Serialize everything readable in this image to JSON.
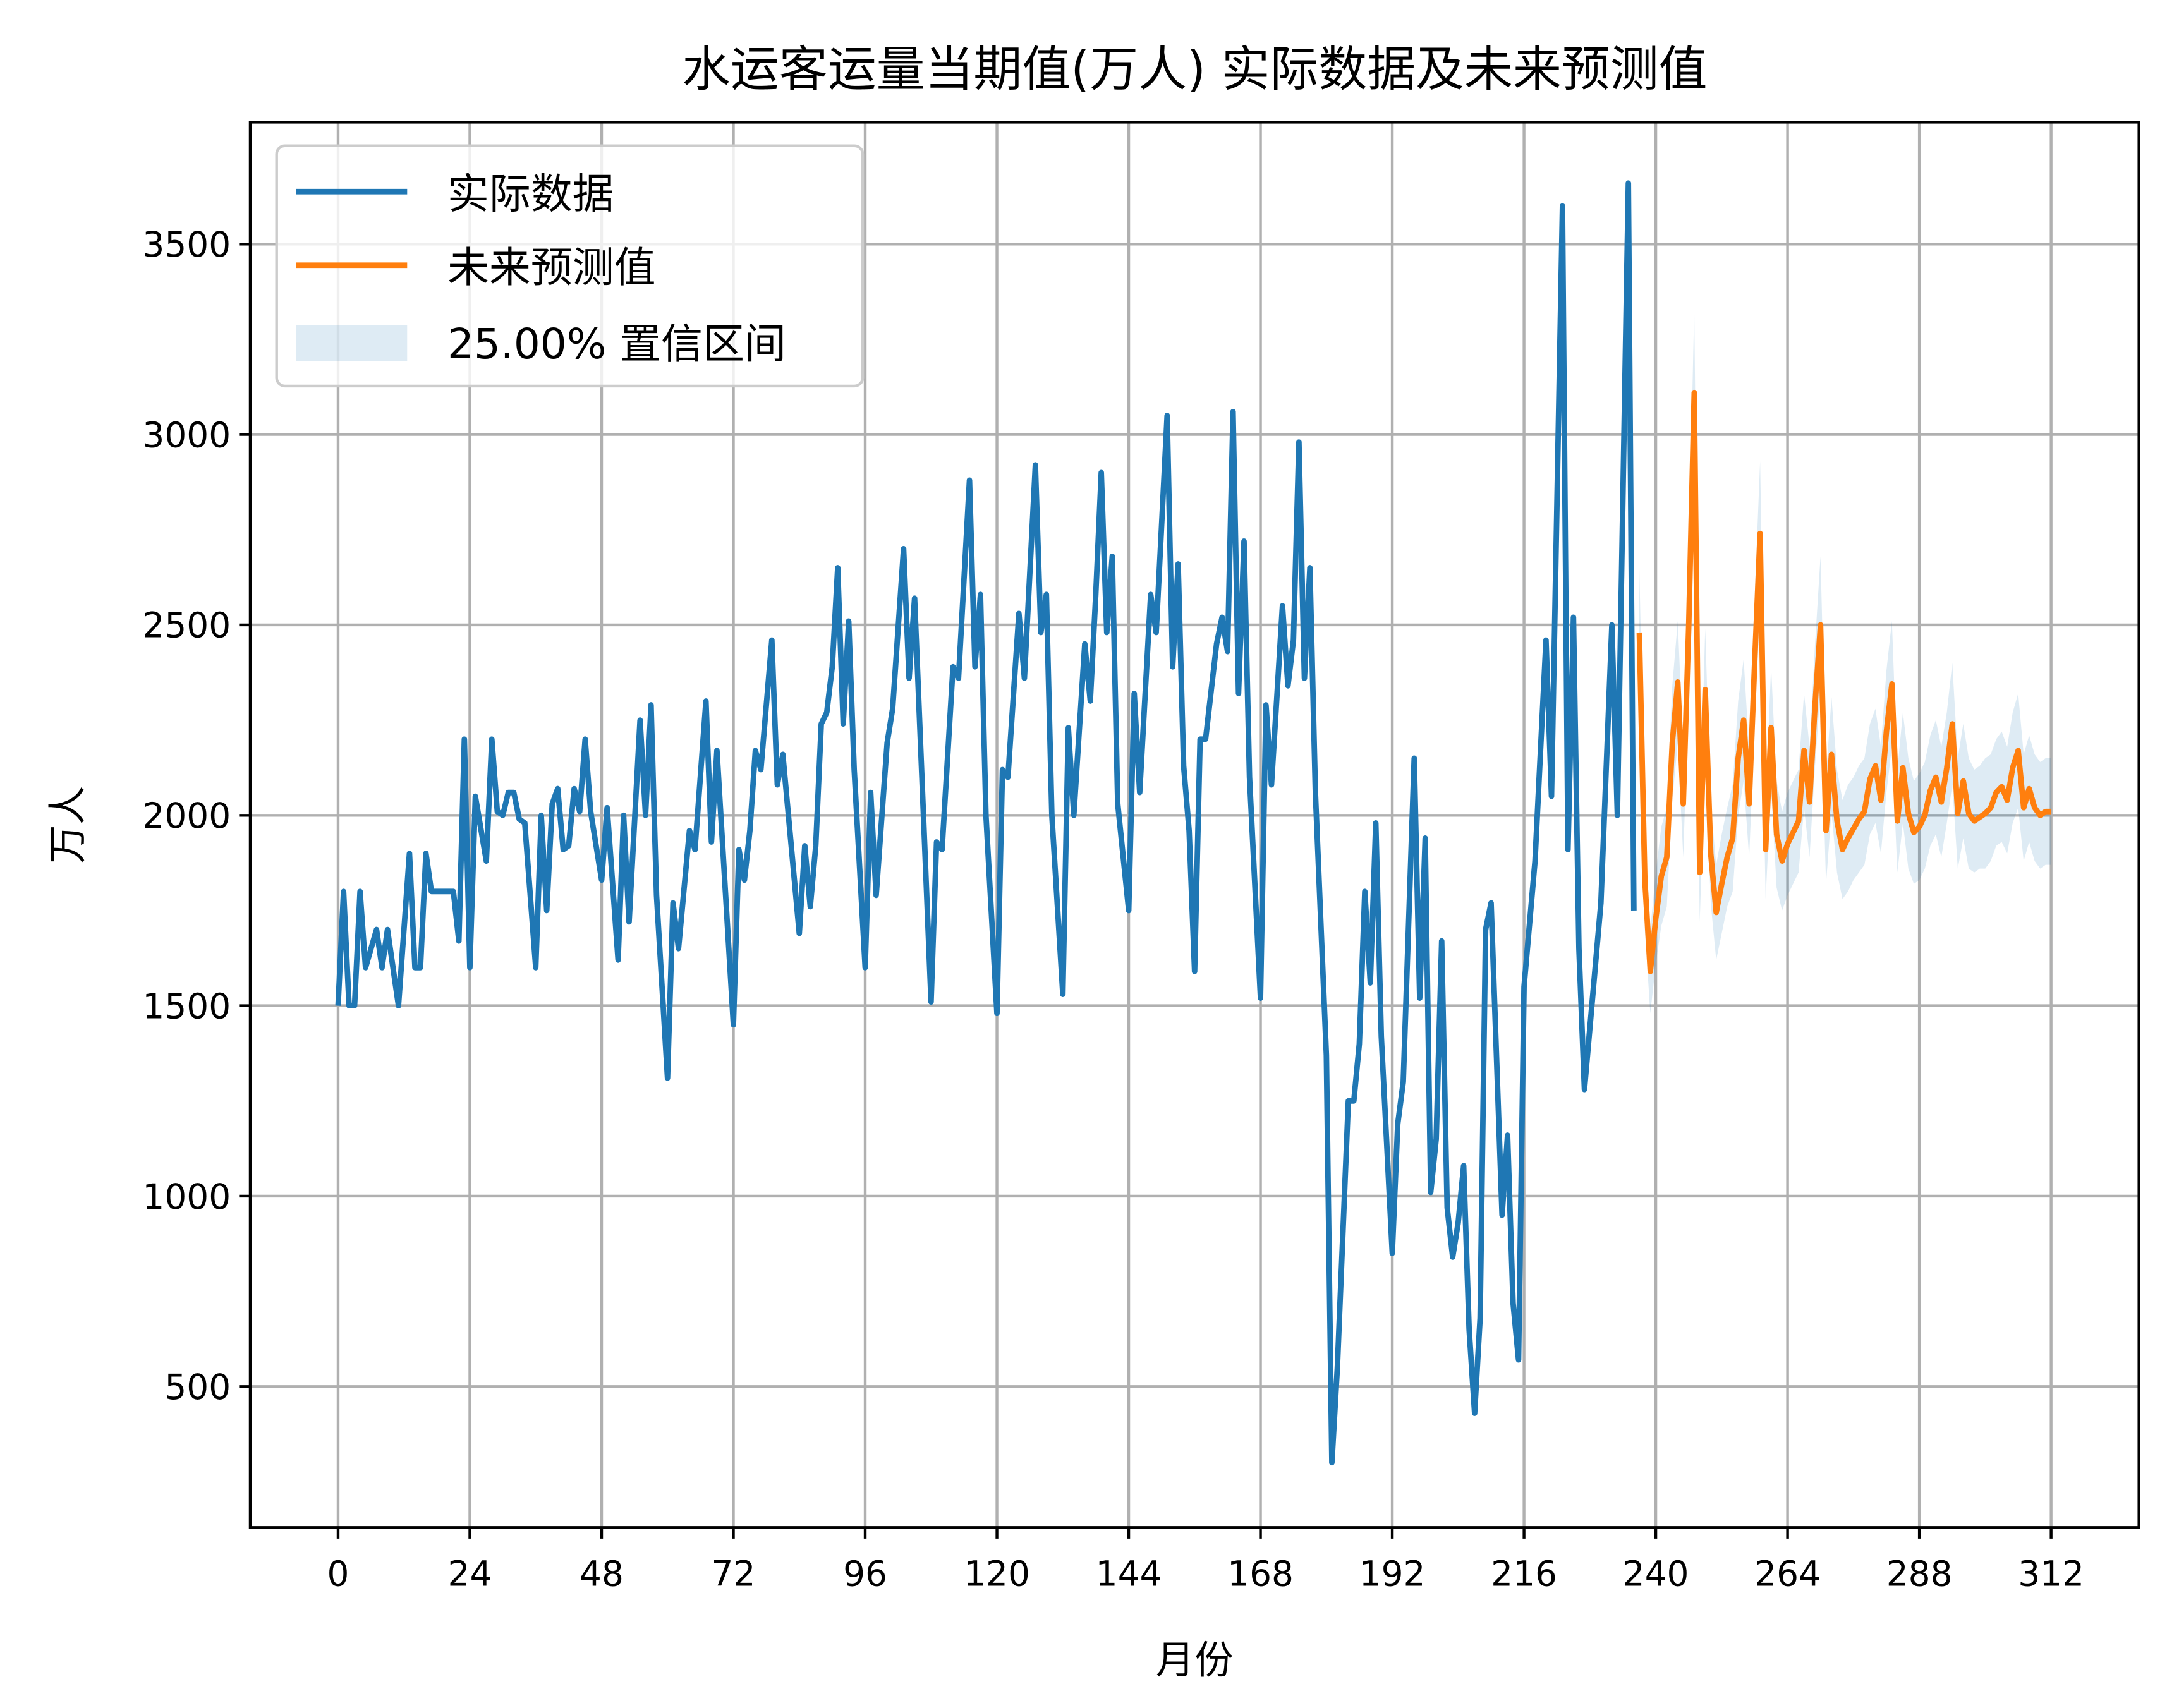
{
  "chart_data": {
    "type": "line",
    "title": "水运客运量当期值(万人) 实际数据及未来预测值",
    "xlabel": "月份",
    "ylabel": "万人",
    "xlim": [
      -16,
      328
    ],
    "ylim": [
      130,
      3820
    ],
    "xticks": [
      0,
      24,
      48,
      72,
      96,
      120,
      144,
      168,
      192,
      216,
      240,
      264,
      288,
      312
    ],
    "yticks": [
      500,
      1000,
      1500,
      2000,
      2500,
      3000,
      3500
    ],
    "grid": true,
    "legend_position": "top-left",
    "colors": {
      "actual": "#1f77b4",
      "forecast": "#ff7f0e",
      "band": "#1f77b4"
    },
    "series": [
      {
        "name": "实际数据",
        "x": [
          0,
          1,
          2,
          3,
          4,
          5,
          7,
          8,
          9,
          11,
          13,
          14,
          15,
          16,
          17,
          21,
          22,
          23,
          24,
          25,
          27,
          28,
          29,
          30,
          31,
          32,
          33,
          34,
          36,
          37,
          38,
          39,
          40,
          41,
          42,
          43,
          44,
          45,
          46,
          48,
          49,
          51,
          52,
          53,
          55,
          56,
          57,
          58,
          60,
          61,
          62,
          64,
          65,
          67,
          68,
          69,
          72,
          73,
          74,
          75,
          76,
          77,
          79,
          80,
          81,
          84,
          85,
          86,
          87,
          88,
          89,
          90,
          91,
          92,
          93,
          94,
          96,
          97,
          98,
          100,
          101,
          103,
          104,
          105,
          108,
          109,
          110,
          112,
          113,
          115,
          116,
          117,
          118,
          120,
          121,
          122,
          124,
          125,
          127,
          128,
          129,
          130,
          132,
          133,
          134,
          136,
          137,
          138,
          139,
          140,
          141,
          142,
          144,
          145,
          146,
          148,
          149,
          151,
          152,
          153,
          154,
          155,
          156,
          157,
          158,
          160,
          161,
          162,
          163,
          164,
          165,
          166,
          168,
          169,
          170,
          172,
          173,
          174,
          175,
          176,
          177,
          178,
          180,
          181,
          182,
          184,
          185,
          186,
          187,
          188,
          189,
          190,
          192,
          193,
          194,
          196,
          197,
          198,
          199,
          200,
          201,
          202,
          203,
          204,
          205,
          206,
          207,
          208,
          209,
          210,
          212,
          213,
          214,
          215,
          216,
          218,
          220,
          221,
          223,
          224,
          225,
          226,
          227,
          230,
          232,
          233,
          235,
          236
        ],
        "y": [
          1500,
          1800,
          1500,
          1500,
          1800,
          1600,
          1700,
          1600,
          1700,
          1500,
          1900,
          1600,
          1600,
          1900,
          1800,
          1800,
          1670,
          2200,
          1600,
          2050,
          1880,
          2200,
          2010,
          2000,
          2060,
          2060,
          1990,
          1980,
          1600,
          2000,
          1750,
          2030,
          2070,
          1910,
          1920,
          2070,
          2010,
          2200,
          2010,
          1830,
          2020,
          1620,
          2000,
          1720,
          2250,
          2000,
          2290,
          1790,
          1310,
          1770,
          1650,
          1960,
          1910,
          2300,
          1930,
          2170,
          1450,
          1910,
          1830,
          1960,
          2170,
          2120,
          2460,
          2080,
          2160,
          1690,
          1920,
          1760,
          1920,
          2240,
          2270,
          2390,
          2650,
          2240,
          2510,
          2120,
          1600,
          2060,
          1790,
          2190,
          2280,
          2700,
          2360,
          2570,
          1510,
          1930,
          1910,
          2390,
          2360,
          2880,
          2390,
          2580,
          2000,
          1480,
          2120,
          2100,
          2530,
          2360,
          2920,
          2480,
          2580,
          2000,
          1530,
          2230,
          2000,
          2450,
          2300,
          2580,
          2900,
          2480,
          2680,
          2030,
          1750,
          2320,
          2060,
          2580,
          2480,
          3050,
          2390,
          2660,
          2130,
          1960,
          1590,
          2200,
          2200,
          2450,
          2520,
          2430,
          3060,
          2320,
          2720,
          2100,
          1520,
          2290,
          2080,
          2550,
          2340,
          2460,
          2980,
          2360,
          2650,
          2060,
          1370,
          300,
          550,
          1250,
          1250,
          1400,
          1800,
          1560,
          1980,
          1420,
          850,
          1190,
          1300,
          2150,
          1520,
          1940,
          1010,
          1150,
          1670,
          970,
          840,
          930,
          1080,
          650,
          430,
          680,
          1700,
          1770,
          950,
          1160,
          720,
          570,
          1550,
          1880,
          2460,
          2050,
          3600,
          1910,
          2520,
          1650,
          1280,
          1770,
          2500,
          2000,
          3660,
          1750
        ]
      },
      {
        "name": "未来预测值",
        "x": [
          237,
          238,
          239,
          240,
          241,
          242,
          243,
          244,
          245,
          246,
          247,
          248,
          249,
          250,
          251,
          252,
          253,
          254,
          255,
          256,
          257,
          258,
          259,
          260,
          261,
          262,
          263,
          264,
          265,
          266,
          267,
          268,
          269,
          270,
          271,
          272,
          273,
          274,
          275,
          276,
          277,
          278,
          279,
          280,
          281,
          282,
          283,
          284,
          285,
          286,
          287,
          288,
          289,
          290,
          291,
          292,
          293,
          294,
          295,
          296,
          297,
          298,
          299,
          300,
          301,
          302,
          303,
          304,
          305,
          306,
          307,
          308,
          309,
          310,
          311,
          312
        ],
        "y": [
          2480,
          1830,
          1590,
          1730,
          1840,
          1890,
          2190,
          2350,
          2030,
          2500,
          3110,
          1850,
          2330,
          1900,
          1745,
          1820,
          1890,
          1940,
          2150,
          2250,
          2030,
          2400,
          2740,
          1910,
          2230,
          1950,
          1880,
          1925,
          1955,
          1985,
          2170,
          2035,
          2290,
          2500,
          1960,
          2160,
          1985,
          1910,
          1940,
          1965,
          1990,
          2010,
          2095,
          2130,
          2040,
          2220,
          2345,
          1985,
          2125,
          2005,
          1955,
          1970,
          2000,
          2065,
          2100,
          2035,
          2125,
          2240,
          2005,
          2090,
          2005,
          1985,
          1995,
          2005,
          2020,
          2060,
          2075,
          2040,
          2125,
          2170,
          2020,
          2070,
          2020,
          2000,
          2010,
          2010
        ]
      }
    ],
    "band": {
      "name": "25.00% 置信区间",
      "upper": [
        2650,
        1960,
        1700,
        1850,
        1970,
        2020,
        2340,
        2510,
        2170,
        2680,
        3330,
        1980,
        2490,
        2030,
        1870,
        1950,
        2020,
        2080,
        2300,
        2410,
        2170,
        2570,
        2930,
        2040,
        2390,
        2090,
        2010,
        2060,
        2090,
        2120,
        2320,
        2180,
        2450,
        2680,
        2100,
        2310,
        2120,
        2040,
        2080,
        2100,
        2130,
        2150,
        2240,
        2280,
        2180,
        2380,
        2510,
        2120,
        2270,
        2150,
        2090,
        2110,
        2140,
        2210,
        2250,
        2180,
        2270,
        2400,
        2150,
        2240,
        2150,
        2120,
        2130,
        2150,
        2160,
        2200,
        2220,
        2180,
        2270,
        2320,
        2160,
        2210,
        2160,
        2140,
        2150,
        2150
      ],
      "lower": [
        2310,
        1700,
        1480,
        1610,
        1710,
        1760,
        2040,
        2190,
        1890,
        2330,
        2890,
        1720,
        2170,
        1770,
        1620,
        1690,
        1760,
        1800,
        2000,
        2090,
        1890,
        2230,
        2550,
        1780,
        2070,
        1810,
        1750,
        1790,
        1820,
        1850,
        2020,
        1890,
        2130,
        2330,
        1820,
        2010,
        1850,
        1780,
        1800,
        1830,
        1850,
        1870,
        1950,
        1980,
        1900,
        2060,
        2180,
        1850,
        1980,
        1860,
        1820,
        1830,
        1860,
        1920,
        1950,
        1890,
        1980,
        2080,
        1860,
        1940,
        1860,
        1850,
        1860,
        1860,
        1880,
        1920,
        1930,
        1900,
        1980,
        2020,
        1880,
        1930,
        1880,
        1860,
        1870,
        1870
      ]
    }
  }
}
